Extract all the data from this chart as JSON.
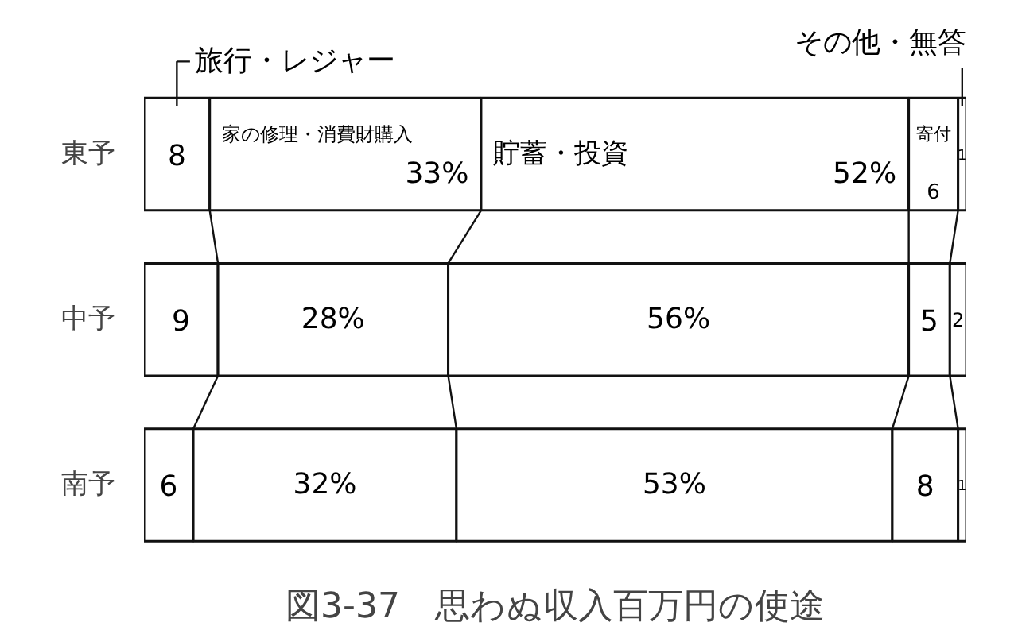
{
  "chart_data": {
    "type": "bar",
    "orientation": "horizontal",
    "stacked": true,
    "title": "図3-37　思わぬ収入百万円の使途",
    "categories": [
      "東予",
      "中予",
      "南予"
    ],
    "series": [
      {
        "name": "旅行・レジャー",
        "color": "#ffffff",
        "values": [
          8,
          9,
          6
        ],
        "value_labels": [
          "8",
          "9",
          "6"
        ]
      },
      {
        "name": "家の修理・消費財購入",
        "color": "#ffffff",
        "values": [
          33,
          28,
          32
        ],
        "value_labels": [
          "33%",
          "28%",
          "32%"
        ]
      },
      {
        "name": "貯蓄・投資",
        "color": "#ffffff",
        "values": [
          52,
          56,
          53
        ],
        "value_labels": [
          "52%",
          "56%",
          "53%"
        ]
      },
      {
        "name": "寄付",
        "color": "#ffffff",
        "values": [
          6,
          5,
          8
        ],
        "value_labels": [
          "6",
          "5",
          "8"
        ]
      },
      {
        "name": "その他・無答",
        "color": "#ffffff",
        "values": [
          1,
          2,
          1
        ],
        "value_labels": [
          "1",
          "2",
          "1"
        ]
      }
    ]
  }
}
